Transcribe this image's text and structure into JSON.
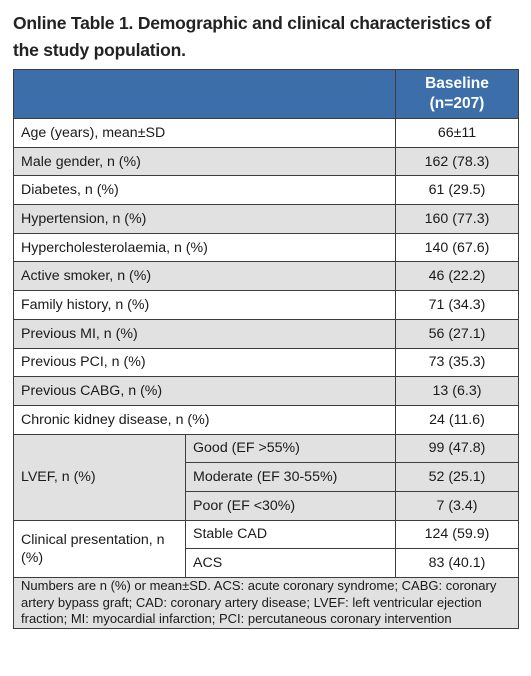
{
  "title": "Online Table 1. Demographic and clinical characteristics of the study population.",
  "header": {
    "col1": "",
    "col2": "Baseline",
    "col2_n": "(n=207)"
  },
  "rows": [
    {
      "label": "Age (years), mean±SD",
      "value": "66±11"
    },
    {
      "label": "Male gender, n (%)",
      "value": "162 (78.3)"
    },
    {
      "label": "Diabetes, n (%)",
      "value": "61 (29.5)"
    },
    {
      "label": "Hypertension, n (%)",
      "value": "160 (77.3)"
    },
    {
      "label": "Hypercholesterolaemia, n (%)",
      "value": "140 (67.6)"
    },
    {
      "label": "Active smoker, n (%)",
      "value": "46 (22.2)"
    },
    {
      "label": "Family history, n (%)",
      "value": "71 (34.3)"
    },
    {
      "label": "Previous MI, n (%)",
      "value": "56 (27.1)"
    },
    {
      "label": "Previous PCI, n (%)",
      "value": "73 (35.3)"
    },
    {
      "label": "Previous CABG, n (%)",
      "value": "13 (6.3)"
    },
    {
      "label": "Chronic kidney disease, n (%)",
      "value": "24 (11.6)"
    }
  ],
  "lvef": {
    "label": "LVEF, n (%)",
    "subrows": [
      {
        "label": "Good (EF >55%)",
        "value": "99 (47.8)"
      },
      {
        "label": "Moderate (EF 30-55%)",
        "value": "52 (25.1)"
      },
      {
        "label": "Poor (EF <30%)",
        "value": "7 (3.4)"
      }
    ]
  },
  "presentation": {
    "label": "Clinical presentation, n (%)",
    "subrows": [
      {
        "label": "Stable CAD",
        "value": "124 (59.9)"
      },
      {
        "label": "ACS",
        "value": "83 (40.1)"
      }
    ]
  },
  "footnote": "Numbers are n (%) or mean±SD. ACS: acute coronary syndrome; CABG: coronary artery bypass graft; CAD: coronary artery disease; LVEF: left ventricular ejection fraction; MI: myocardial infarction; PCI: percutaneous coronary intervention",
  "colors": {
    "header_bg": "#3c6ea9",
    "shade_bg": "#e1e1e1",
    "header_text": "#ffffff"
  }
}
